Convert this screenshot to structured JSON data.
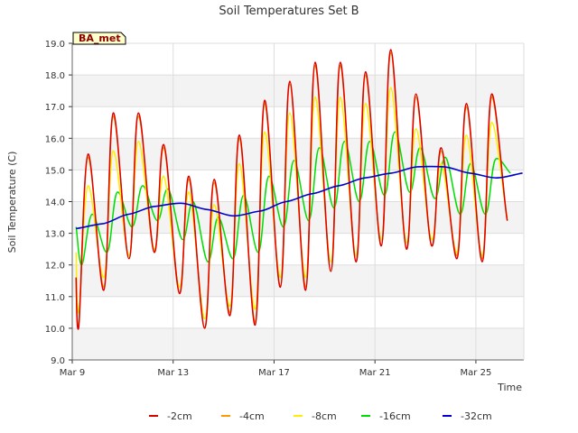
{
  "chart_data": {
    "type": "line",
    "title": "Soil Temperatures Set B",
    "xlabel": "Time",
    "ylabel": "Soil Temperature (C)",
    "badge": "BA_met",
    "ylim": [
      9.0,
      19.0
    ],
    "xlim": [
      "Mar 9",
      "Mar 27"
    ],
    "yticks": [
      "9.0",
      "10.0",
      "11.0",
      "12.0",
      "13.0",
      "14.0",
      "15.0",
      "16.0",
      "17.0",
      "18.0",
      "19.0"
    ],
    "xticks": [
      {
        "day": 0,
        "label": "Mar 9"
      },
      {
        "day": 4,
        "label": "Mar 13"
      },
      {
        "day": 8,
        "label": "Mar 17"
      },
      {
        "day": 12,
        "label": "Mar 21"
      },
      {
        "day": 16,
        "label": "Mar 25"
      }
    ],
    "grid": true,
    "legend_position": "bottom",
    "days": [
      {
        "date": "Mar 9",
        "min": 10.0,
        "max": 15.5,
        "m16": 12.0,
        "M16": 13.6,
        "d32": 13.15
      },
      {
        "date": "Mar 10",
        "min": 11.2,
        "max": 16.8,
        "m16": 12.4,
        "M16": 14.3,
        "d32": 13.3
      },
      {
        "date": "Mar 11",
        "min": 12.2,
        "max": 16.8,
        "m16": 13.2,
        "M16": 14.5,
        "d32": 13.6
      },
      {
        "date": "Mar 12",
        "min": 12.4,
        "max": 15.8,
        "m16": 13.4,
        "M16": 14.4,
        "d32": 13.85
      },
      {
        "date": "Mar 13",
        "min": 11.1,
        "max": 14.8,
        "m16": 12.8,
        "M16": 14.0,
        "d32": 13.95
      },
      {
        "date": "Mar 14",
        "min": 10.0,
        "max": 14.7,
        "m16": 12.1,
        "M16": 13.5,
        "d32": 13.75
      },
      {
        "date": "Mar 15",
        "min": 10.4,
        "max": 16.1,
        "m16": 12.2,
        "M16": 14.2,
        "d32": 13.55
      },
      {
        "date": "Mar 16",
        "min": 10.1,
        "max": 17.2,
        "m16": 12.4,
        "M16": 14.8,
        "d32": 13.7
      },
      {
        "date": "Mar 17",
        "min": 11.3,
        "max": 17.8,
        "m16": 13.2,
        "M16": 15.3,
        "d32": 14.0
      },
      {
        "date": "Mar 18",
        "min": 11.2,
        "max": 18.4,
        "m16": 13.4,
        "M16": 15.7,
        "d32": 14.25
      },
      {
        "date": "Mar 19",
        "min": 11.8,
        "max": 18.4,
        "m16": 13.8,
        "M16": 15.9,
        "d32": 14.5
      },
      {
        "date": "Mar 20",
        "min": 12.1,
        "max": 18.1,
        "m16": 14.0,
        "M16": 15.9,
        "d32": 14.75
      },
      {
        "date": "Mar 21",
        "min": 12.6,
        "max": 18.8,
        "m16": 14.2,
        "M16": 16.2,
        "d32": 14.9
      },
      {
        "date": "Mar 22",
        "min": 12.5,
        "max": 17.4,
        "m16": 14.3,
        "M16": 15.7,
        "d32": 15.1
      },
      {
        "date": "Mar 23",
        "min": 12.6,
        "max": 15.7,
        "m16": 14.1,
        "M16": 15.4,
        "d32": 15.1
      },
      {
        "date": "Mar 24",
        "min": 12.2,
        "max": 17.1,
        "m16": 13.6,
        "M16": 15.2,
        "d32": 14.9
      },
      {
        "date": "Mar 25",
        "min": 12.1,
        "max": 17.4,
        "m16": 13.6,
        "M16": 15.35,
        "d32": 14.75
      },
      {
        "date": "Mar 26",
        "min": 13.4,
        "max": 17.4,
        "m16": 14.9,
        "M16": 15.35,
        "d32": 14.9
      }
    ],
    "series": [
      {
        "name": "-2cm",
        "color": "#dd0000",
        "values": [
          11.6,
          10.0,
          15.5,
          11.2,
          16.8,
          12.2,
          16.8,
          12.4,
          15.8,
          11.1,
          14.8,
          10.0,
          14.7,
          10.4,
          16.1,
          10.1,
          17.2,
          11.3,
          17.8,
          11.2,
          18.4,
          11.8,
          18.4,
          12.1,
          18.1,
          12.6,
          18.8,
          12.5,
          17.4,
          12.6,
          15.7,
          12.2,
          17.1,
          12.1,
          17.4,
          13.4
        ]
      },
      {
        "name": "-4cm",
        "color": "#ff9900",
        "values": [
          11.6,
          10.1,
          15.4,
          11.3,
          16.7,
          12.2,
          16.7,
          12.4,
          15.7,
          11.1,
          14.7,
          10.0,
          14.6,
          10.5,
          16.0,
          10.2,
          17.1,
          11.3,
          17.7,
          11.3,
          18.3,
          11.8,
          18.3,
          12.1,
          18.0,
          12.6,
          18.7,
          12.5,
          17.3,
          12.6,
          15.6,
          12.3,
          17.0,
          12.2,
          17.3,
          13.4
        ]
      },
      {
        "name": "-8cm",
        "color": "#ffee00",
        "values": [
          12.4,
          10.5,
          14.5,
          11.6,
          15.6,
          12.3,
          15.9,
          12.5,
          14.8,
          11.3,
          14.3,
          10.3,
          13.9,
          10.7,
          15.2,
          10.6,
          16.2,
          11.6,
          16.8,
          11.6,
          17.3,
          12.1,
          17.3,
          12.3,
          17.1,
          12.8,
          17.6,
          12.7,
          16.3,
          12.8,
          15.2,
          12.4,
          16.1,
          12.3,
          16.5,
          13.5
        ]
      },
      {
        "name": "-16cm",
        "color": "#00dd00",
        "values": [
          13.2,
          12.0,
          13.6,
          12.4,
          14.3,
          13.2,
          14.5,
          13.4,
          14.4,
          12.8,
          14.0,
          12.1,
          13.5,
          12.2,
          14.2,
          12.4,
          14.8,
          13.2,
          15.3,
          13.4,
          15.7,
          13.8,
          15.9,
          14.0,
          15.9,
          14.2,
          16.2,
          14.3,
          15.7,
          14.1,
          15.4,
          13.6,
          15.2,
          13.6,
          15.35,
          14.9
        ]
      },
      {
        "name": "-32cm",
        "color": "#0000cc",
        "values": [
          13.15,
          13.3,
          13.6,
          13.85,
          13.95,
          13.75,
          13.55,
          13.7,
          14.0,
          14.25,
          14.5,
          14.75,
          14.9,
          15.1,
          15.1,
          14.9,
          14.75,
          14.9
        ]
      }
    ]
  }
}
